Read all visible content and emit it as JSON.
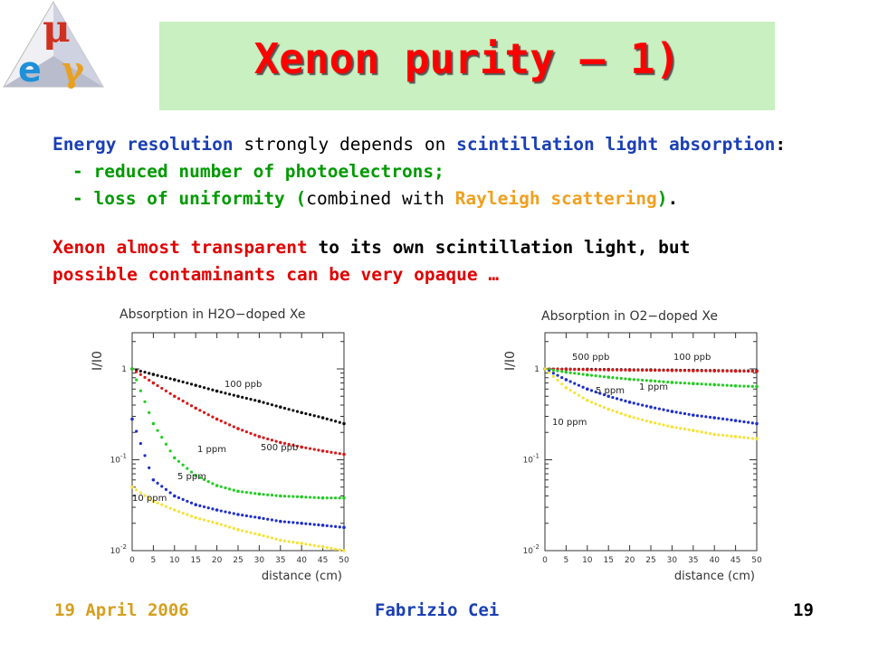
{
  "logo": {
    "mu": "μ",
    "e": "e",
    "gamma": "γ"
  },
  "title": "Xenon purity – 1)",
  "text": {
    "l1_a": "Energy resolution",
    "l1_b": " strongly depends on ",
    "l1_c": "scintillation light absorption",
    "l1_d": ":",
    "l2": "- reduced number of photoelectrons;",
    "l3_a": "- loss of uniformity (",
    "l3_b": "combined with ",
    "l3_c": "Rayleigh scattering",
    "l3_d": ")",
    "l3_e": ".",
    "l4_a": "Xenon almost transparent",
    "l4_b": " to its own scintillation light, but",
    "l5": "possible contaminants can be very opaque …"
  },
  "footer": {
    "date": "19 April 2006",
    "author": "Fabrizio Cei",
    "page": "19"
  },
  "colors": {
    "black": "#111111",
    "red": "#d81818",
    "green": "#22cc22",
    "blue": "#1f2fcc",
    "yellow": "#f5e23a"
  },
  "chart_data": [
    {
      "type": "scatter",
      "title": "Absorption in H2O−doped Xe",
      "ylabel": "I/I0",
      "xlabel": "distance (cm)",
      "yscale": "log",
      "ylim": [
        0.01,
        2.5
      ],
      "xlim": [
        0,
        50
      ],
      "xticks": [
        "0",
        "5",
        "10",
        "15",
        "20",
        "25",
        "30",
        "35",
        "40",
        "45",
        "50"
      ],
      "yticks": [
        {
          "value": 1,
          "label": "1"
        },
        {
          "value": 0.1,
          "label": "10^-1"
        },
        {
          "value": 0.01,
          "label": "10^-2"
        }
      ],
      "series": [
        {
          "name": "100 ppb",
          "color": "black",
          "x": [
            0,
            5,
            10,
            15,
            20,
            25,
            30,
            35,
            40,
            45,
            50
          ],
          "y": [
            1.0,
            0.87,
            0.76,
            0.66,
            0.57,
            0.5,
            0.44,
            0.38,
            0.33,
            0.29,
            0.25
          ]
        },
        {
          "name": "500 ppb",
          "color": "red",
          "x": [
            0,
            5,
            10,
            15,
            20,
            25,
            30,
            35,
            40,
            45,
            50
          ],
          "y": [
            1.0,
            0.7,
            0.5,
            0.37,
            0.28,
            0.22,
            0.18,
            0.155,
            0.138,
            0.125,
            0.115
          ]
        },
        {
          "name": "1 ppm",
          "color": "green",
          "x": [
            0,
            5,
            10,
            15,
            20,
            25,
            30,
            35,
            40,
            45,
            50
          ],
          "y": [
            1.0,
            0.25,
            0.105,
            0.067,
            0.052,
            0.045,
            0.042,
            0.04,
            0.039,
            0.038,
            0.038
          ]
        },
        {
          "name": "5 ppm",
          "color": "blue",
          "x": [
            0,
            5,
            10,
            15,
            20,
            25,
            30,
            35,
            40,
            45,
            50
          ],
          "y": [
            0.28,
            0.06,
            0.04,
            0.032,
            0.028,
            0.025,
            0.023,
            0.021,
            0.02,
            0.019,
            0.018
          ]
        },
        {
          "name": "10 ppm",
          "color": "yellow",
          "x": [
            0,
            5,
            10,
            15,
            20,
            25,
            30,
            35,
            40,
            45,
            50
          ],
          "y": [
            0.05,
            0.035,
            0.028,
            0.023,
            0.02,
            0.017,
            0.015,
            0.013,
            0.012,
            0.011,
            0.01
          ]
        }
      ]
    },
    {
      "type": "scatter",
      "title": "Absorption in O2−doped Xe",
      "ylabel": "I/I0",
      "xlabel": "distance (cm)",
      "yscale": "log",
      "ylim": [
        0.01,
        2.5
      ],
      "xlim": [
        0,
        50
      ],
      "xticks": [
        "0",
        "5",
        "10",
        "15",
        "20",
        "25",
        "30",
        "35",
        "40",
        "45",
        "50"
      ],
      "yticks": [
        {
          "value": 1,
          "label": "1"
        },
        {
          "value": 0.1,
          "label": "10^-1"
        },
        {
          "value": 0.01,
          "label": "10^-2"
        }
      ],
      "series": [
        {
          "name": "100 ppb",
          "color": "black",
          "x": [
            0,
            5,
            10,
            15,
            20,
            25,
            30,
            35,
            40,
            45,
            50
          ],
          "y": [
            1.0,
            0.995,
            0.99,
            0.985,
            0.98,
            0.975,
            0.97,
            0.965,
            0.96,
            0.955,
            0.95
          ]
        },
        {
          "name": "500 ppb",
          "color": "red",
          "x": [
            0,
            5,
            10,
            15,
            20,
            25,
            30,
            35,
            40,
            45,
            50
          ],
          "y": [
            1.0,
            0.99,
            0.98,
            0.975,
            0.97,
            0.965,
            0.96,
            0.955,
            0.95,
            0.945,
            0.94
          ]
        },
        {
          "name": "1 ppm",
          "color": "green",
          "x": [
            0,
            5,
            10,
            15,
            20,
            25,
            30,
            35,
            40,
            45,
            50
          ],
          "y": [
            1.0,
            0.92,
            0.86,
            0.81,
            0.77,
            0.74,
            0.71,
            0.69,
            0.67,
            0.65,
            0.64
          ]
        },
        {
          "name": "5 ppm",
          "color": "blue",
          "x": [
            0,
            5,
            10,
            15,
            20,
            25,
            30,
            35,
            40,
            45,
            50
          ],
          "y": [
            1.0,
            0.76,
            0.6,
            0.5,
            0.43,
            0.38,
            0.34,
            0.31,
            0.29,
            0.27,
            0.25
          ]
        },
        {
          "name": "10 ppm",
          "color": "yellow",
          "x": [
            0,
            5,
            10,
            15,
            20,
            25,
            30,
            35,
            40,
            45,
            50
          ],
          "y": [
            1.0,
            0.62,
            0.45,
            0.36,
            0.3,
            0.26,
            0.23,
            0.21,
            0.19,
            0.18,
            0.17
          ]
        }
      ]
    }
  ]
}
